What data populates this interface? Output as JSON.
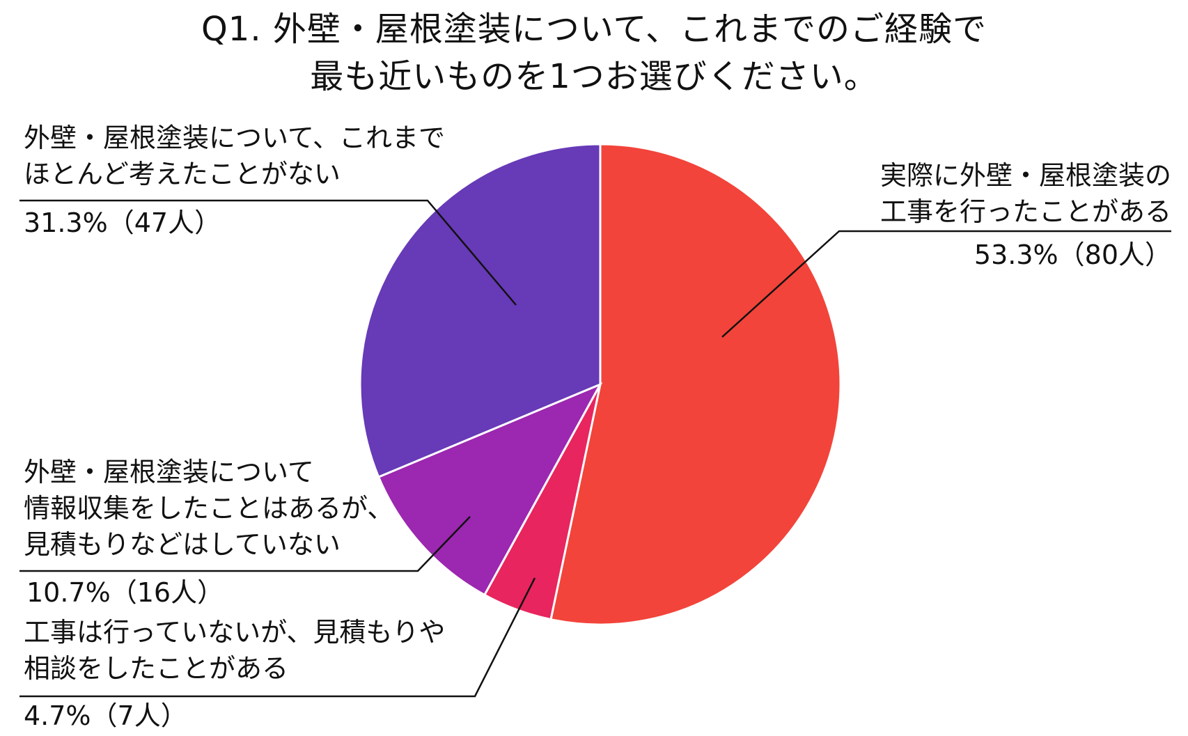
{
  "title_lines": [
    "Q1. 外壁・屋根塗装について、これまでのご経験で",
    "最も近いものを1つお選びください。"
  ],
  "chart_data": {
    "type": "pie",
    "start_angle_deg": 0,
    "direction": "clockwise",
    "slices": [
      {
        "label_lines": [
          "実際に外壁・屋根塗装の",
          "工事を行ったことがある"
        ],
        "value_text": "53.3%（80人）",
        "percent": 53.3,
        "count": 80,
        "color": "#F2443A"
      },
      {
        "label_lines": [
          "工事は行っていないが、見積もりや",
          "相談をしたことがある"
        ],
        "value_text": "4.7%（7人）",
        "percent": 4.7,
        "count": 7,
        "color": "#E8255E"
      },
      {
        "label_lines": [
          "外壁・屋根塗装について",
          "情報収集をしたことはあるが、",
          "見積もりなどはしていない"
        ],
        "value_text": "10.7%（16人）",
        "percent": 10.7,
        "count": 16,
        "color": "#9C27B0"
      },
      {
        "label_lines": [
          "外壁・屋根塗装について、これまで",
          "ほとんど考えたことがない"
        ],
        "value_text": "31.3%（47人）",
        "percent": 31.3,
        "count": 47,
        "color": "#673AB7"
      }
    ]
  }
}
